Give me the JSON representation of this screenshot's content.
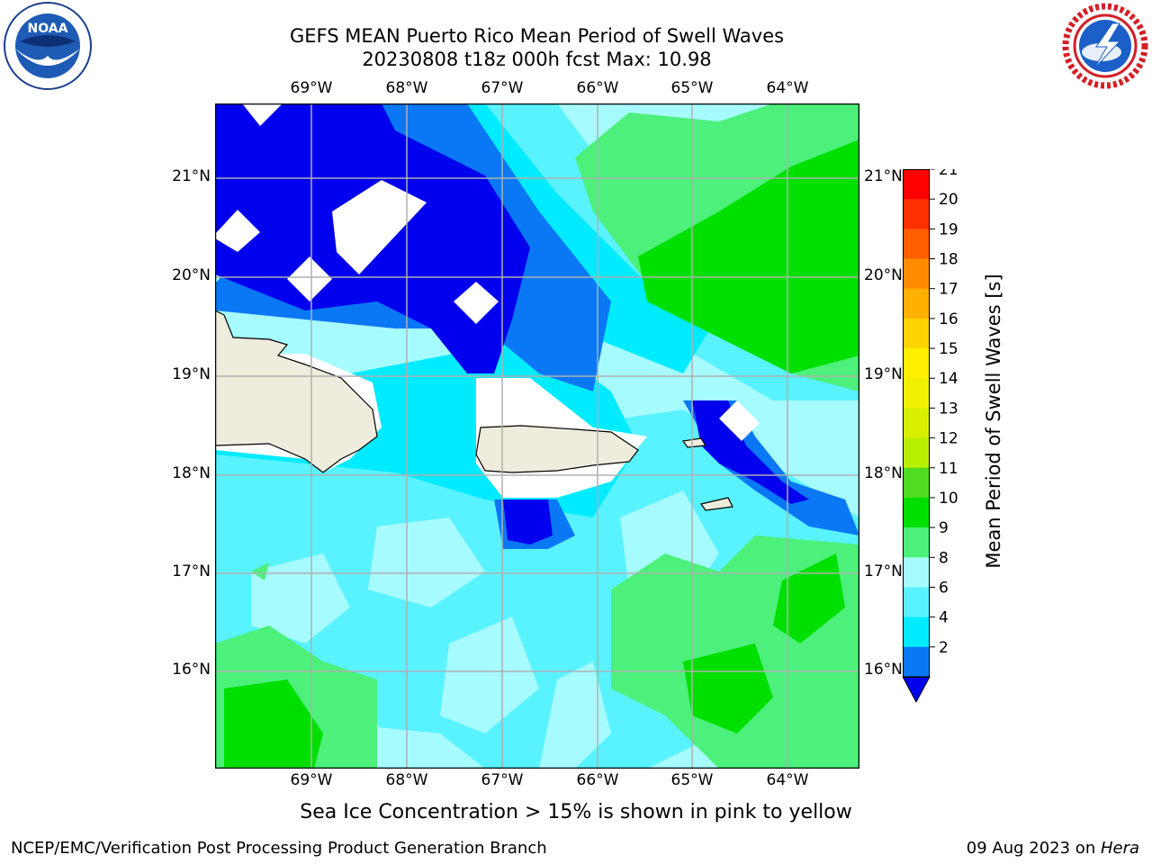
{
  "header": {
    "title_line1": "GEFS MEAN Puerto Rico Mean Period of Swell Waves",
    "title_line2": "20230808 t18z 000h fcst   Max: 10.98"
  },
  "logos": {
    "left": {
      "text": "NOAA",
      "ring_text": "NATIONAL OCEANIC AND ATMOSPHERIC ADMINISTRATION · U.S. DEPARTMENT OF COMMERCE"
    },
    "right": {
      "ring_text": "NATIONAL WEATHER SERVICE"
    }
  },
  "map": {
    "lon_labels": [
      "69°W",
      "68°W",
      "67°W",
      "66°W",
      "65°W",
      "64°W"
    ],
    "lat_labels": [
      "21°N",
      "20°N",
      "19°N",
      "18°N",
      "17°N",
      "16°N"
    ],
    "colors": {
      "land": "#eeecdc",
      "masked": "#ffffff",
      "grid": "#b0b0b0",
      "c2": "#0000ee",
      "c4": "#0a78f5",
      "c6": "#00ebff",
      "c8": "#59f2ff",
      "c9": "#a6fbff",
      "c10": "#4cf07a",
      "c11": "#00e000"
    }
  },
  "colorbar": {
    "label": "Mean Period of Swell Waves [s]",
    "ticks": [
      "21",
      "20",
      "19",
      "18",
      "17",
      "16",
      "15",
      "14",
      "13",
      "12",
      "11",
      "10",
      "9",
      "8",
      "6",
      "4",
      "2"
    ],
    "colors": [
      "#ff0000",
      "#ff3000",
      "#ff5f00",
      "#ff8c00",
      "#ffb000",
      "#ffd400",
      "#fff000",
      "#f0f000",
      "#d8f000",
      "#b8ee00",
      "#50dc20",
      "#00e000",
      "#4cf07a",
      "#a6fbff",
      "#59f2ff",
      "#00ebff",
      "#0a78f5"
    ],
    "extend_color": "#0000ee"
  },
  "footer": {
    "caption": "Sea Ice Concentration > 15% is shown in pink to yellow",
    "left": "NCEP/EMC/Verification Post Processing Product Generation Branch",
    "right_date": "09 Aug 2023 on ",
    "right_host": "Hera"
  }
}
